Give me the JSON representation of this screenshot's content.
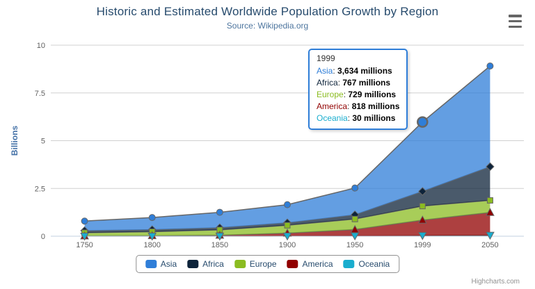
{
  "chart_data": {
    "type": "area",
    "stacking": "normal",
    "title": "Historic and Estimated Worldwide Population Growth by Region",
    "subtitle": "Source: Wikipedia.org",
    "categories": [
      "1750",
      "1800",
      "1850",
      "1900",
      "1950",
      "1999",
      "2050"
    ],
    "xlabel": "",
    "ylabel": "Billions",
    "unit": "millions",
    "y_axis": {
      "title": "Billions",
      "ticks": [
        0,
        2.5,
        5,
        7.5,
        10
      ],
      "max": 10,
      "grid": true
    },
    "series": [
      {
        "name": "Asia",
        "color": "#2f7ed8",
        "marker": "circle",
        "values": [
          502,
          635,
          809,
          947,
          1402,
          3634,
          5268
        ]
      },
      {
        "name": "Africa",
        "color": "#0d233a",
        "marker": "diamond",
        "values": [
          106,
          107,
          111,
          133,
          221,
          767,
          1766
        ]
      },
      {
        "name": "Europe",
        "color": "#8bbc21",
        "marker": "square",
        "values": [
          163,
          203,
          276,
          408,
          547,
          729,
          628
        ]
      },
      {
        "name": "America",
        "color": "#910000",
        "marker": "triangle",
        "values": [
          18,
          31,
          54,
          156,
          339,
          818,
          1201
        ]
      },
      {
        "name": "Oceania",
        "color": "#1aadce",
        "marker": "triangle-down",
        "values": [
          2,
          2,
          2,
          6,
          13,
          30,
          46
        ]
      }
    ],
    "stack_order_bottom_to_top": [
      "Oceania",
      "America",
      "Europe",
      "Africa",
      "Asia"
    ],
    "fill_opacity": 0.75,
    "line_color": "#666666",
    "grid_color": "#d0d0d0",
    "axis_line_color": "#c0d0e0",
    "label_color": "#606060",
    "title_color": "#274b6d",
    "subtitle_color": "#4d759e",
    "y_title_color": "#4572a7",
    "legend_position": "bottom",
    "hover": {
      "series": "Asia",
      "category": "1999"
    }
  },
  "legend": {
    "border_color": "#909090",
    "text_color": "#274b6d",
    "items": [
      {
        "label": "Asia",
        "color": "#2f7ed8"
      },
      {
        "label": "Africa",
        "color": "#0d233a"
      },
      {
        "label": "Europe",
        "color": "#8bbc21"
      },
      {
        "label": "America",
        "color": "#910000"
      },
      {
        "label": "Oceania",
        "color": "#1aadce"
      }
    ]
  },
  "tooltip": {
    "header": "1999",
    "separator": ": ",
    "border_color": "#2f7ed8",
    "rows": [
      {
        "name": "Asia",
        "color": "#2f7ed8",
        "value": "3,634 millions"
      },
      {
        "name": "Africa",
        "color": "#0d233a",
        "value": "767 millions"
      },
      {
        "name": "Europe",
        "color": "#8bbc21",
        "value": "729 millions"
      },
      {
        "name": "America",
        "color": "#910000",
        "value": "818 millions"
      },
      {
        "name": "Oceania",
        "color": "#1aadce",
        "value": "30 millions"
      }
    ]
  },
  "export_menu": {
    "icon": "hamburger-icon"
  },
  "credits": {
    "label": "Highcharts.com"
  }
}
